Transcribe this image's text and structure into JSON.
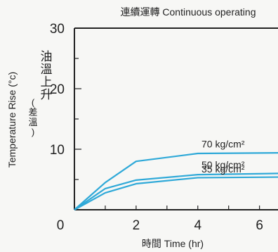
{
  "chart_data": {
    "type": "line",
    "title": "連續運轉 Continuous operating",
    "xlabel": "時間 Time (hr)",
    "ylabel_en": "Temperature Rise (°c)",
    "ylabel_zh": "油溫上升",
    "ylabel_zh_sub": "(差溫)",
    "xlim": [
      0,
      6.6
    ],
    "ylim": [
      0,
      30
    ],
    "x_ticks": [
      "0",
      "2",
      "4",
      "6"
    ],
    "y_ticks": [
      "30",
      "20",
      "10"
    ],
    "grid": false,
    "series": [
      {
        "name": "70 kg/cm²",
        "x": [
          0,
          1,
          2,
          4,
          6.6
        ],
        "values": [
          0,
          4.5,
          8.0,
          9.3,
          9.4
        ]
      },
      {
        "name": "50 kg/cm²",
        "x": [
          0,
          1,
          2,
          4,
          6.6
        ],
        "values": [
          0,
          3.5,
          4.9,
          5.8,
          6.0
        ]
      },
      {
        "name": "35 kg/cm²",
        "x": [
          0,
          1,
          2,
          4,
          6.6
        ],
        "values": [
          0,
          2.8,
          4.3,
          5.3,
          5.4
        ]
      }
    ],
    "line_color": "#2fa9d8",
    "axis_color": "#222222"
  }
}
